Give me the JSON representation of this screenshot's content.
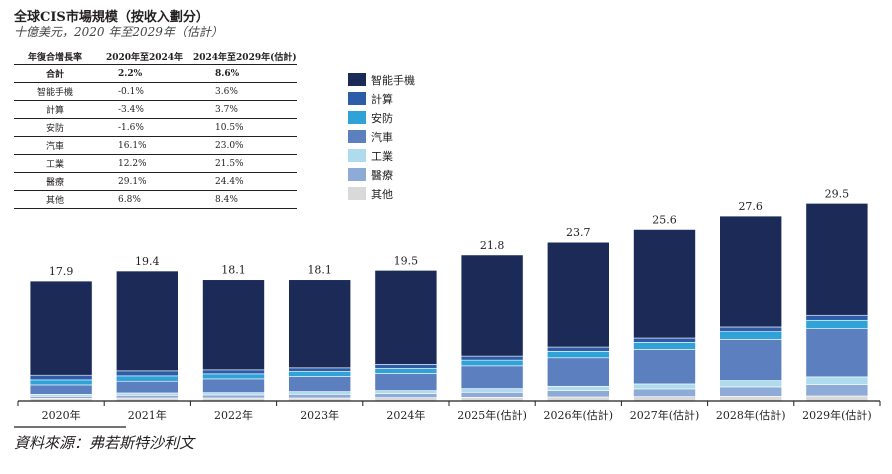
{
  "header": {
    "title": "全球CIS市場規模（按收入劃分）",
    "subtitle": "十億美元，2020 年至2029年（估計）"
  },
  "cagr_table": {
    "headers": [
      "年復合增長率",
      "2020年至2024年",
      "2024年至2029年(估計)"
    ],
    "rows": [
      [
        "合計",
        "2.2%",
        "8.6%"
      ],
      [
        "智能手機",
        "-0.1%",
        "3.6%"
      ],
      [
        "計算",
        "-3.4%",
        "3.7%"
      ],
      [
        "安防",
        "-1.6%",
        "10.5%"
      ],
      [
        "汽車",
        "16.1%",
        "23.0%"
      ],
      [
        "工業",
        "12.2%",
        "21.5%"
      ],
      [
        "醫療",
        "29.1%",
        "24.4%"
      ],
      [
        "其他",
        "6.8%",
        "8.4%"
      ]
    ]
  },
  "source": "資料來源：弗若斯特沙利文",
  "chart_data": {
    "type": "bar",
    "stacked": true,
    "categories": [
      "2020年",
      "2021年",
      "2022年",
      "2023年",
      "2024年",
      "2025年(估計)",
      "2026年(估計)",
      "2027年(估計)",
      "2028年(估計)",
      "2029年(估計)"
    ],
    "totals": [
      "17.9",
      "19.4",
      "18.1",
      "18.1",
      "19.5",
      "21.8",
      "23.7",
      "25.6",
      "27.6",
      "29.5"
    ],
    "series": [
      {
        "name": "其他",
        "color": "#d9d9d9",
        "values": [
          0.4,
          0.45,
          0.45,
          0.45,
          0.5,
          0.55,
          0.6,
          0.65,
          0.7,
          0.75
        ]
      },
      {
        "name": "醫療",
        "color": "#8eaad6",
        "values": [
          0.3,
          0.4,
          0.45,
          0.55,
          0.6,
          0.75,
          0.95,
          1.15,
          1.4,
          1.7
        ]
      },
      {
        "name": "工業",
        "color": "#aedcec",
        "values": [
          0.3,
          0.35,
          0.35,
          0.4,
          0.45,
          0.55,
          0.65,
          0.75,
          0.95,
          1.15
        ]
      },
      {
        "name": "汽車",
        "color": "#5b7fbf",
        "values": [
          1.4,
          1.75,
          2.05,
          2.25,
          2.55,
          3.4,
          4.25,
          5.15,
          6.15,
          7.2
        ]
      },
      {
        "name": "安防",
        "color": "#2fa2d8",
        "values": [
          0.75,
          0.8,
          0.75,
          0.75,
          0.75,
          0.85,
          0.95,
          1.05,
          1.15,
          1.25
        ]
      },
      {
        "name": "計算",
        "color": "#2d5ca9",
        "values": [
          0.7,
          0.75,
          0.6,
          0.55,
          0.6,
          0.6,
          0.65,
          0.65,
          0.7,
          0.75
        ]
      },
      {
        "name": "智能手機",
        "color": "#1b2a57",
        "values": [
          14.05,
          14.9,
          13.45,
          13.15,
          14.05,
          15.1,
          15.65,
          16.2,
          16.55,
          16.7
        ]
      }
    ],
    "legend_order": [
      "智能手機",
      "計算",
      "安防",
      "汽車",
      "工業",
      "醫療",
      "其他"
    ],
    "legend_position": "right of table",
    "ylim": [
      0,
      30
    ],
    "grid": false
  }
}
